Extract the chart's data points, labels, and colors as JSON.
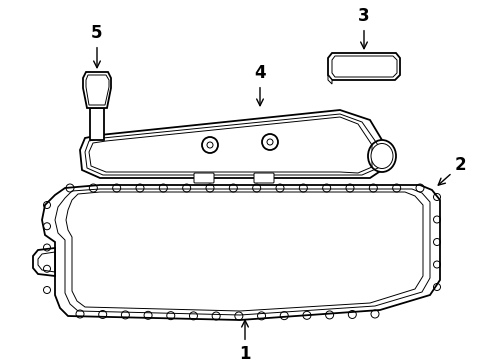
{
  "background_color": "#ffffff",
  "line_color": "#000000",
  "lw": 1.3,
  "tlw": 0.7,
  "label_fontsize": 10,
  "bold_fontsize": 12
}
